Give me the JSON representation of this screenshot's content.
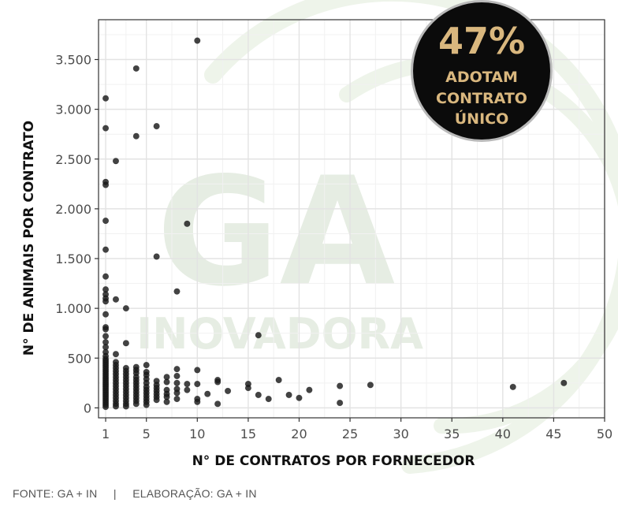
{
  "chart_data": {
    "type": "scatter",
    "xlabel": "N° DE CONTRATOS POR FORNECEDOR",
    "ylabel": "N° DE ANIMAIS POR CONTRATO",
    "xlim": [
      0.3,
      50
    ],
    "ylim": [
      -100,
      3900
    ],
    "x_ticks": [
      1,
      5,
      10,
      15,
      20,
      25,
      30,
      35,
      40,
      45,
      50
    ],
    "x_tick_labels": [
      "1",
      "5",
      "10",
      "15",
      "20",
      "25",
      "30",
      "35",
      "40",
      "45",
      "50"
    ],
    "y_ticks": [
      0,
      500,
      1000,
      1500,
      2000,
      2500,
      3000,
      3500
    ],
    "y_tick_labels": [
      "0",
      "500",
      "1.000",
      "1.500",
      "2.000",
      "2.500",
      "3.000",
      "3.500"
    ],
    "grid": true,
    "point_color": "#1a1a1a",
    "points": [
      [
        1,
        3110
      ],
      [
        1,
        2810
      ],
      [
        1,
        2270
      ],
      [
        1,
        2240
      ],
      [
        1,
        1880
      ],
      [
        1,
        1590
      ],
      [
        1,
        1320
      ],
      [
        1,
        1190
      ],
      [
        1,
        1140
      ],
      [
        1,
        1100
      ],
      [
        1,
        1070
      ],
      [
        1,
        940
      ],
      [
        1,
        810
      ],
      [
        1,
        790
      ],
      [
        1,
        720
      ],
      [
        1,
        660
      ],
      [
        1,
        610
      ],
      [
        1,
        560
      ],
      [
        1,
        520
      ],
      [
        1,
        490
      ],
      [
        1,
        470
      ],
      [
        1,
        450
      ],
      [
        1,
        430
      ],
      [
        1,
        410
      ],
      [
        1,
        390
      ],
      [
        1,
        370
      ],
      [
        1,
        350
      ],
      [
        1,
        330
      ],
      [
        1,
        310
      ],
      [
        1,
        290
      ],
      [
        1,
        270
      ],
      [
        1,
        250
      ],
      [
        1,
        230
      ],
      [
        1,
        210
      ],
      [
        1,
        190
      ],
      [
        1,
        170
      ],
      [
        1,
        150
      ],
      [
        1,
        130
      ],
      [
        1,
        110
      ],
      [
        1,
        90
      ],
      [
        1,
        70
      ],
      [
        1,
        50
      ],
      [
        1,
        30
      ],
      [
        1,
        10
      ],
      [
        2,
        2480
      ],
      [
        2,
        1090
      ],
      [
        2,
        540
      ],
      [
        2,
        460
      ],
      [
        2,
        430
      ],
      [
        2,
        400
      ],
      [
        2,
        370
      ],
      [
        2,
        340
      ],
      [
        2,
        310
      ],
      [
        2,
        280
      ],
      [
        2,
        250
      ],
      [
        2,
        220
      ],
      [
        2,
        190
      ],
      [
        2,
        160
      ],
      [
        2,
        130
      ],
      [
        2,
        100
      ],
      [
        2,
        70
      ],
      [
        2,
        40
      ],
      [
        2,
        15
      ],
      [
        3,
        1000
      ],
      [
        3,
        650
      ],
      [
        3,
        400
      ],
      [
        3,
        370
      ],
      [
        3,
        340
      ],
      [
        3,
        310
      ],
      [
        3,
        280
      ],
      [
        3,
        250
      ],
      [
        3,
        220
      ],
      [
        3,
        190
      ],
      [
        3,
        160
      ],
      [
        3,
        130
      ],
      [
        3,
        100
      ],
      [
        3,
        70
      ],
      [
        3,
        40
      ],
      [
        3,
        15
      ],
      [
        4,
        3410
      ],
      [
        4,
        2730
      ],
      [
        4,
        410
      ],
      [
        4,
        380
      ],
      [
        4,
        350
      ],
      [
        4,
        310
      ],
      [
        4,
        280
      ],
      [
        4,
        250
      ],
      [
        4,
        220
      ],
      [
        4,
        190
      ],
      [
        4,
        160
      ],
      [
        4,
        130
      ],
      [
        4,
        100
      ],
      [
        4,
        70
      ],
      [
        4,
        40
      ],
      [
        5,
        430
      ],
      [
        5,
        360
      ],
      [
        5,
        330
      ],
      [
        5,
        290
      ],
      [
        5,
        250
      ],
      [
        5,
        210
      ],
      [
        5,
        180
      ],
      [
        5,
        150
      ],
      [
        5,
        120
      ],
      [
        5,
        90
      ],
      [
        5,
        60
      ],
      [
        5,
        30
      ],
      [
        6,
        2830
      ],
      [
        6,
        1520
      ],
      [
        6,
        270
      ],
      [
        6,
        230
      ],
      [
        6,
        200
      ],
      [
        6,
        170
      ],
      [
        6,
        140
      ],
      [
        6,
        110
      ],
      [
        6,
        80
      ],
      [
        7,
        310
      ],
      [
        7,
        260
      ],
      [
        7,
        180
      ],
      [
        7,
        140
      ],
      [
        7,
        110
      ],
      [
        7,
        60
      ],
      [
        8,
        1170
      ],
      [
        8,
        390
      ],
      [
        8,
        320
      ],
      [
        8,
        250
      ],
      [
        8,
        190
      ],
      [
        8,
        150
      ],
      [
        8,
        90
      ],
      [
        9,
        1850
      ],
      [
        9,
        240
      ],
      [
        9,
        180
      ],
      [
        10,
        3690
      ],
      [
        10,
        380
      ],
      [
        10,
        240
      ],
      [
        10,
        90
      ],
      [
        10,
        60
      ],
      [
        11,
        140
      ],
      [
        12,
        280
      ],
      [
        12,
        260
      ],
      [
        12,
        40
      ],
      [
        13,
        170
      ],
      [
        15,
        240
      ],
      [
        15,
        200
      ],
      [
        16,
        730
      ],
      [
        16,
        130
      ],
      [
        17,
        90
      ],
      [
        18,
        280
      ],
      [
        19,
        130
      ],
      [
        20,
        100
      ],
      [
        21,
        180
      ],
      [
        24,
        220
      ],
      [
        24,
        50
      ],
      [
        27,
        230
      ],
      [
        41,
        210
      ],
      [
        46,
        250
      ]
    ]
  },
  "badge": {
    "percent": "47%",
    "line1": "ADOTAM",
    "line2": "CONTRATO",
    "line3": "ÚNICO"
  },
  "watermark": {
    "big": "GA",
    "small": "INOVADORA"
  },
  "footer": {
    "source": "FONTE: GA + IN",
    "separator": "|",
    "credit": "ELABORAÇÃO: GA + IN"
  }
}
